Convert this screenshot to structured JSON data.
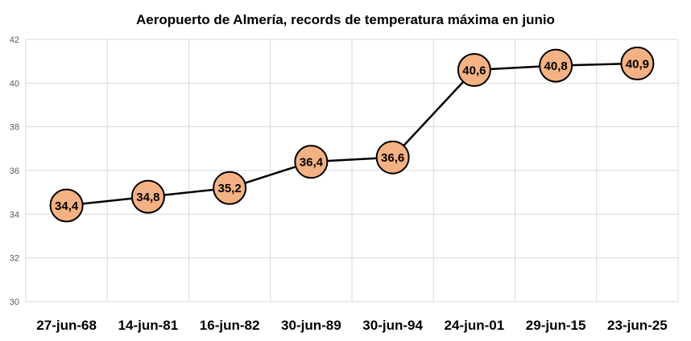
{
  "chart_data": {
    "type": "line",
    "title": "Aeropuerto de Almería, records de temperatura máxima en junio",
    "xlabel": "",
    "ylabel": "",
    "categories": [
      "27-jun-68",
      "14-jun-81",
      "16-jun-82",
      "30-jun-89",
      "30-jun-94",
      "24-jun-01",
      "29-jun-15",
      "23-jun-25"
    ],
    "series": [
      {
        "values": [
          34.4,
          34.8,
          35.2,
          36.4,
          36.6,
          40.6,
          40.8,
          40.9
        ],
        "data_labels": [
          "34,4",
          "34,8",
          "35,2",
          "36,4",
          "36,6",
          "40,6",
          "40,8",
          "40,9"
        ],
        "line_color": "#000000",
        "marker": "circle",
        "marker_fill": "#f4b183",
        "marker_edge": "#000000"
      }
    ],
    "ylim": [
      30,
      42
    ],
    "yticks": [
      30,
      32,
      34,
      36,
      38,
      40,
      42
    ],
    "ytick_labels": [
      "30",
      "32",
      "34",
      "36",
      "38",
      "40",
      "42"
    ],
    "grid": true,
    "legend": "none"
  }
}
